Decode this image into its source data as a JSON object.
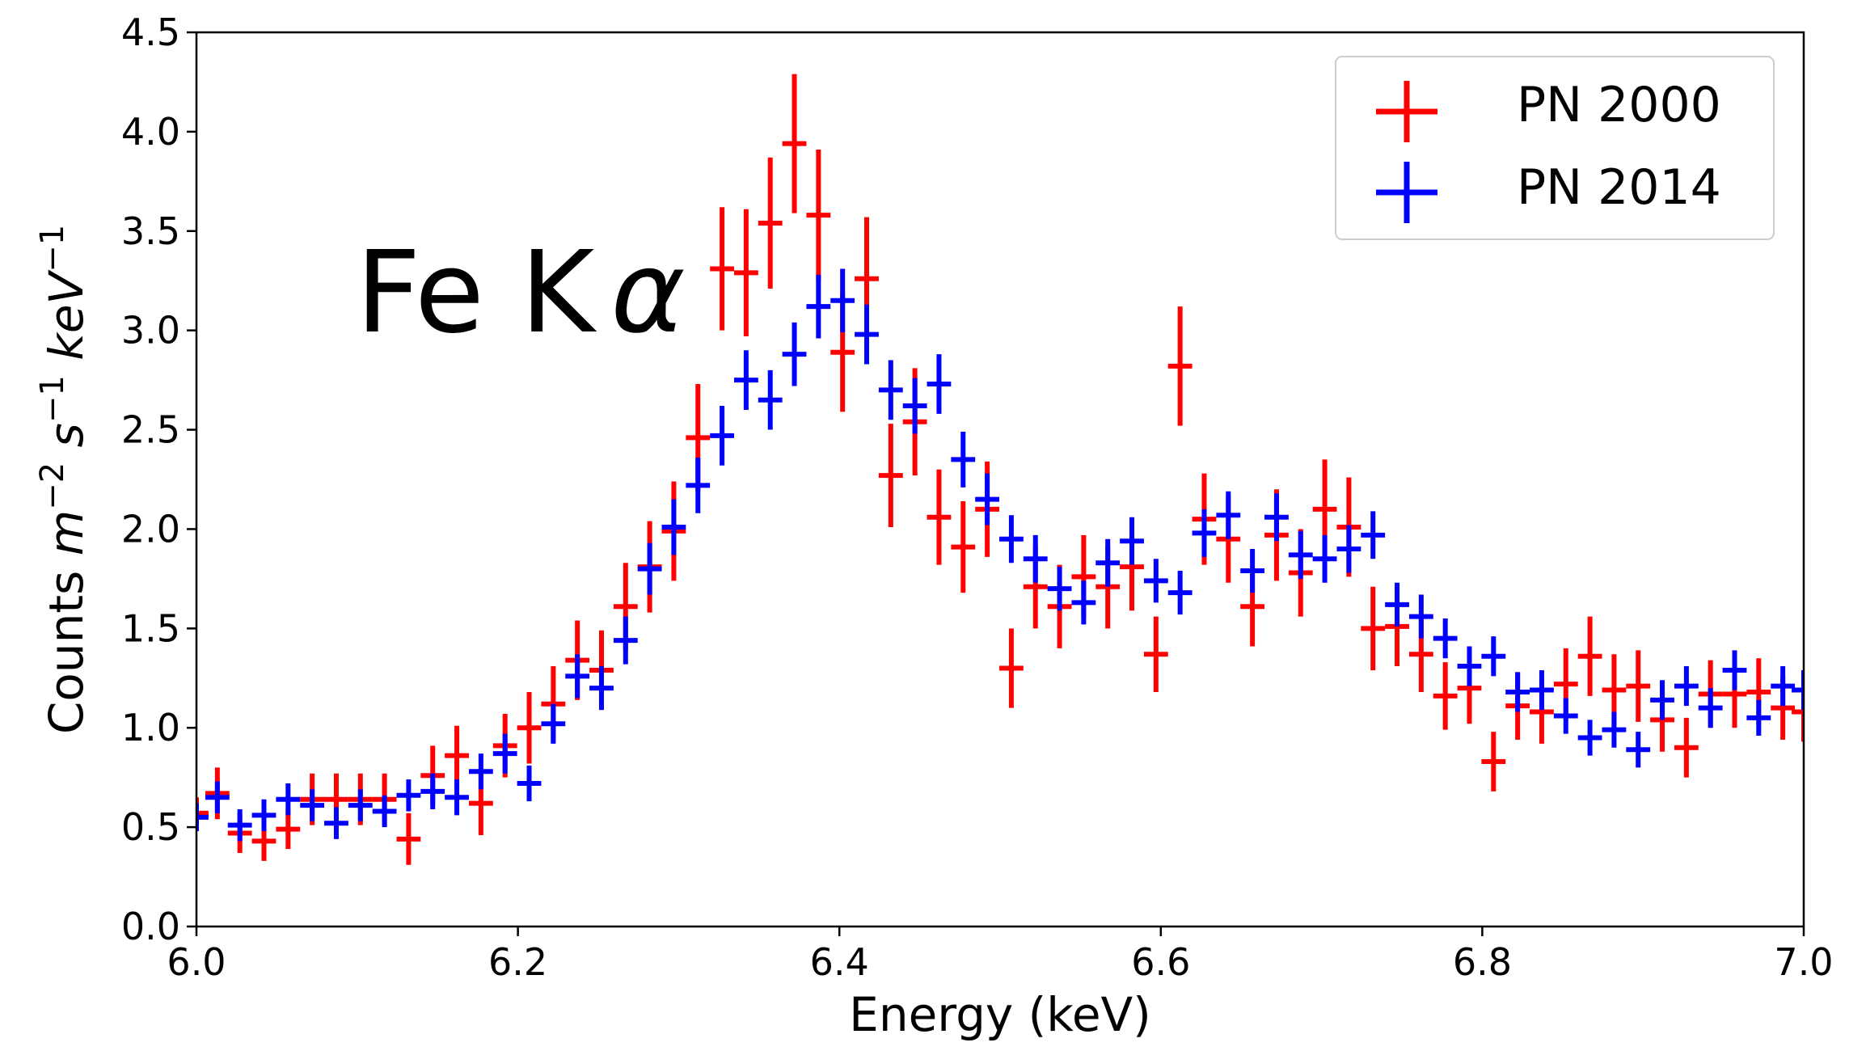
{
  "chart_data": {
    "type": "scatter",
    "title": "",
    "xlabel": "Energy (keV)",
    "ylabel_text": "Counts",
    "ylabel_unit": "m",
    "ylabel_exp1": "−2",
    "ylabel_s": "s",
    "ylabel_exp2": "−1",
    "ylabel_kev": "keV",
    "ylabel_exp3": "−1",
    "xlim": [
      6.0,
      7.0
    ],
    "ylim": [
      0.0,
      4.5
    ],
    "xticks": [
      "6.0",
      "6.2",
      "6.4",
      "6.6",
      "6.8",
      "7.0"
    ],
    "xtick_values": [
      6.0,
      6.2,
      6.4,
      6.6,
      6.8,
      7.0
    ],
    "yticks": [
      "0.0",
      "0.5",
      "1.0",
      "1.5",
      "2.0",
      "2.5",
      "3.0",
      "3.5",
      "4.0",
      "4.5"
    ],
    "ytick_values": [
      0.0,
      0.5,
      1.0,
      1.5,
      2.0,
      2.5,
      3.0,
      3.5,
      4.0,
      4.5
    ],
    "annotation_main": "Fe K",
    "annotation_greek": "α",
    "legend_position": "top-right",
    "x_half_width": 0.0075,
    "series": [
      {
        "name": "PN 2000",
        "color": "#ff0000",
        "x": [
          6.0,
          6.013,
          6.027,
          6.042,
          6.057,
          6.072,
          6.087,
          6.102,
          6.117,
          6.132,
          6.147,
          6.162,
          6.177,
          6.192,
          6.207,
          6.222,
          6.237,
          6.252,
          6.267,
          6.282,
          6.297,
          6.312,
          6.327,
          6.342,
          6.357,
          6.372,
          6.387,
          6.402,
          6.417,
          6.432,
          6.447,
          6.462,
          6.477,
          6.492,
          6.507,
          6.522,
          6.537,
          6.552,
          6.567,
          6.582,
          6.597,
          6.612,
          6.627,
          6.642,
          6.657,
          6.672,
          6.687,
          6.702,
          6.717,
          6.732,
          6.747,
          6.762,
          6.777,
          6.792,
          6.807,
          6.822,
          6.837,
          6.852,
          6.867,
          6.882,
          6.897,
          6.912,
          6.927,
          6.942,
          6.957,
          6.972,
          6.987,
          7.0
        ],
        "y": [
          0.57,
          0.67,
          0.47,
          0.43,
          0.49,
          0.64,
          0.64,
          0.64,
          0.64,
          0.44,
          0.76,
          0.86,
          0.62,
          0.91,
          1.0,
          1.12,
          1.34,
          1.29,
          1.61,
          1.81,
          1.99,
          2.46,
          3.31,
          3.29,
          3.54,
          3.94,
          3.58,
          2.89,
          3.26,
          2.27,
          2.54,
          2.06,
          1.91,
          2.1,
          1.3,
          1.71,
          1.61,
          1.76,
          1.71,
          1.81,
          1.37,
          2.82,
          2.05,
          1.95,
          1.61,
          1.97,
          1.78,
          2.1,
          2.01,
          1.5,
          1.51,
          1.37,
          1.16,
          1.2,
          0.83,
          1.11,
          1.08,
          1.22,
          1.36,
          1.19,
          1.21,
          1.04,
          0.9,
          1.17,
          1.17,
          1.18,
          1.1,
          1.08
        ],
        "yerr": [
          0.08,
          0.13,
          0.1,
          0.1,
          0.1,
          0.13,
          0.13,
          0.13,
          0.13,
          0.13,
          0.15,
          0.15,
          0.16,
          0.16,
          0.18,
          0.19,
          0.2,
          0.2,
          0.22,
          0.23,
          0.25,
          0.27,
          0.31,
          0.32,
          0.33,
          0.35,
          0.33,
          0.3,
          0.31,
          0.26,
          0.27,
          0.24,
          0.23,
          0.24,
          0.2,
          0.21,
          0.21,
          0.21,
          0.21,
          0.22,
          0.19,
          0.3,
          0.23,
          0.22,
          0.2,
          0.23,
          0.22,
          0.25,
          0.25,
          0.21,
          0.2,
          0.19,
          0.17,
          0.18,
          0.15,
          0.17,
          0.16,
          0.18,
          0.2,
          0.18,
          0.18,
          0.16,
          0.15,
          0.17,
          0.17,
          0.17,
          0.16,
          0.15
        ]
      },
      {
        "name": "PN 2014",
        "color": "#0000ff",
        "x": [
          6.0,
          6.013,
          6.027,
          6.042,
          6.057,
          6.072,
          6.087,
          6.102,
          6.117,
          6.132,
          6.147,
          6.162,
          6.177,
          6.192,
          6.207,
          6.222,
          6.237,
          6.252,
          6.267,
          6.282,
          6.297,
          6.312,
          6.327,
          6.342,
          6.357,
          6.372,
          6.387,
          6.402,
          6.417,
          6.432,
          6.447,
          6.462,
          6.477,
          6.492,
          6.507,
          6.522,
          6.537,
          6.552,
          6.567,
          6.582,
          6.597,
          6.612,
          6.627,
          6.642,
          6.657,
          6.672,
          6.687,
          6.702,
          6.717,
          6.732,
          6.747,
          6.762,
          6.777,
          6.792,
          6.807,
          6.822,
          6.837,
          6.852,
          6.867,
          6.882,
          6.897,
          6.912,
          6.927,
          6.942,
          6.957,
          6.972,
          6.987,
          7.0
        ],
        "y": [
          0.55,
          0.65,
          0.51,
          0.56,
          0.64,
          0.61,
          0.52,
          0.61,
          0.58,
          0.66,
          0.68,
          0.65,
          0.78,
          0.87,
          0.72,
          1.02,
          1.26,
          1.2,
          1.44,
          1.8,
          2.01,
          2.22,
          2.47,
          2.75,
          2.65,
          2.88,
          3.12,
          3.15,
          2.98,
          2.7,
          2.62,
          2.73,
          2.35,
          2.15,
          1.95,
          1.85,
          1.7,
          1.63,
          1.83,
          1.94,
          1.74,
          1.68,
          1.98,
          2.07,
          1.79,
          2.06,
          1.87,
          1.85,
          1.9,
          1.97,
          1.62,
          1.56,
          1.45,
          1.31,
          1.36,
          1.18,
          1.19,
          1.06,
          0.95,
          0.99,
          0.89,
          1.14,
          1.21,
          1.1,
          1.29,
          1.05,
          1.21,
          1.19
        ],
        "yerr": [
          0.07,
          0.08,
          0.08,
          0.08,
          0.08,
          0.08,
          0.08,
          0.08,
          0.08,
          0.08,
          0.09,
          0.09,
          0.09,
          0.1,
          0.09,
          0.1,
          0.11,
          0.11,
          0.12,
          0.13,
          0.14,
          0.14,
          0.15,
          0.15,
          0.15,
          0.16,
          0.16,
          0.16,
          0.15,
          0.15,
          0.14,
          0.15,
          0.14,
          0.13,
          0.12,
          0.12,
          0.11,
          0.11,
          0.12,
          0.12,
          0.11,
          0.11,
          0.12,
          0.12,
          0.11,
          0.12,
          0.12,
          0.12,
          0.12,
          0.12,
          0.11,
          0.11,
          0.1,
          0.1,
          0.1,
          0.1,
          0.1,
          0.09,
          0.09,
          0.09,
          0.09,
          0.1,
          0.1,
          0.1,
          0.1,
          0.09,
          0.1,
          0.1
        ]
      }
    ]
  }
}
